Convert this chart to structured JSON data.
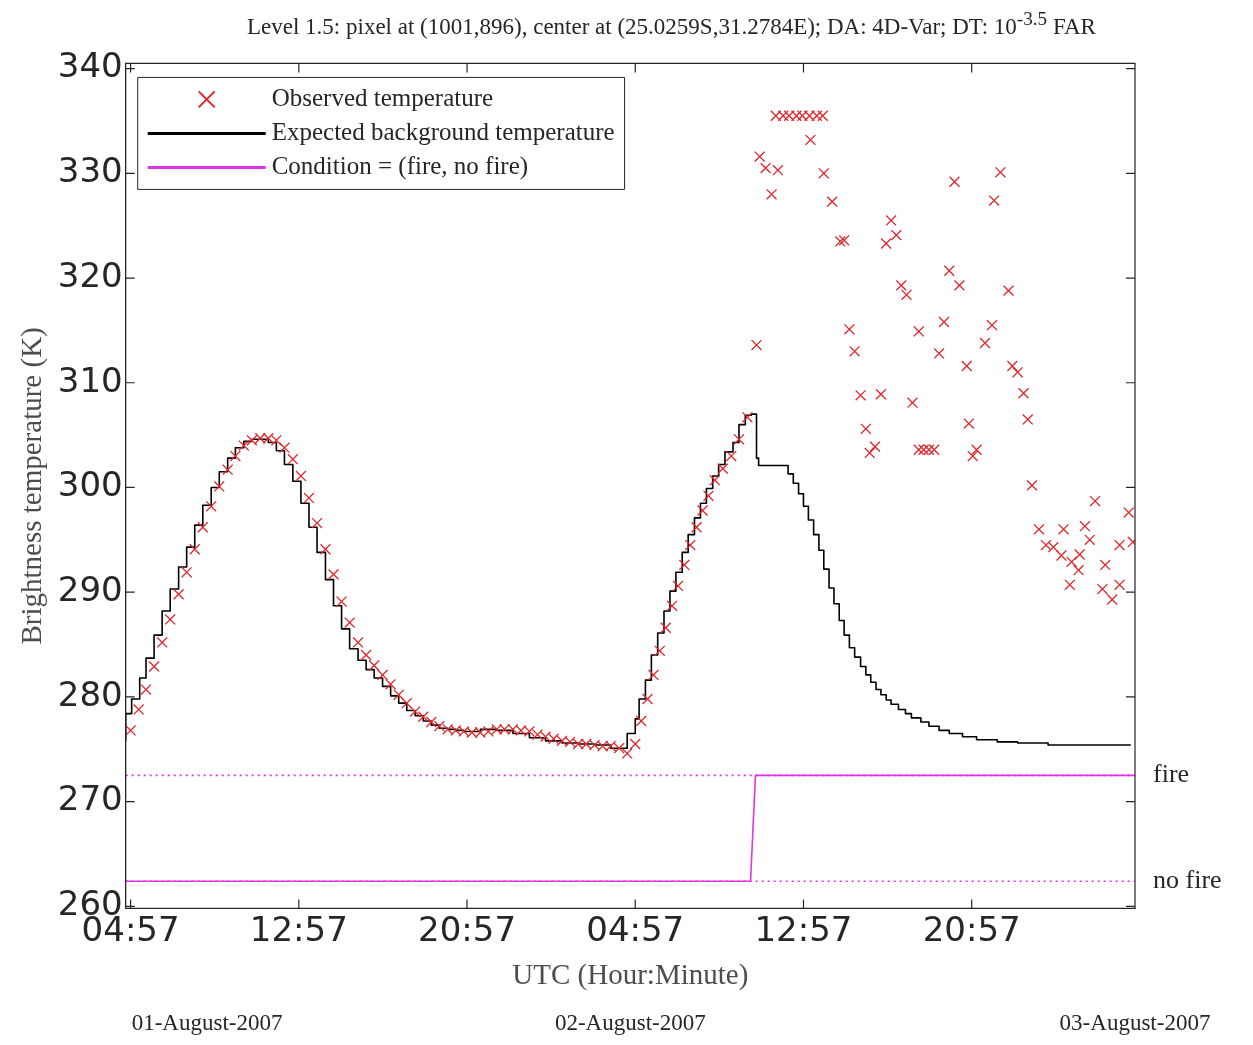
{
  "chart_data": {
    "type": "scatter",
    "title": "Level 1.5: pixel at (1001,896), center at (25.0259S,31.2784E); DA: 4D-Var; DT: 10$^{-3.5}$ FAR",
    "xlabel": "UTC (Hour:Minute)",
    "ylabel": "Brightness temperature (K)",
    "xlim": [
      "2007-08-01T04:43",
      "2007-08-03T04:43"
    ],
    "xticks": [
      {
        "value": "2007-08-01T04:57",
        "label": "04:57"
      },
      {
        "value": "2007-08-01T12:57",
        "label": "12:57"
      },
      {
        "value": "2007-08-01T20:57",
        "label": "20:57"
      },
      {
        "value": "2007-08-02T04:57",
        "label": "04:57"
      },
      {
        "value": "2007-08-02T12:57",
        "label": "12:57"
      },
      {
        "value": "2007-08-02T20:57",
        "label": "20:57"
      }
    ],
    "ylim": [
      259.8,
      340.5
    ],
    "yticks": [
      260,
      270,
      280,
      290,
      300,
      310,
      320,
      330,
      340
    ],
    "legend": "top left",
    "series": [
      {
        "name": "Observed temperature",
        "marker": "cross",
        "color": "#e0262b",
        "x": [
          "2007-08-01T04:57",
          "2007-08-01T05:20",
          "2007-08-01T05:41",
          "2007-08-01T06:04",
          "2007-08-01T06:27",
          "2007-08-01T06:50",
          "2007-08-01T07:14",
          "2007-08-01T07:37",
          "2007-08-01T08:00",
          "2007-08-01T08:23",
          "2007-08-01T08:47",
          "2007-08-01T09:10",
          "2007-08-01T09:34",
          "2007-08-01T09:56",
          "2007-08-01T10:20",
          "2007-08-01T10:43",
          "2007-08-01T11:07",
          "2007-08-01T11:30",
          "2007-08-01T11:53",
          "2007-08-01T12:16",
          "2007-08-01T12:40",
          "2007-08-01T13:03",
          "2007-08-01T13:26",
          "2007-08-01T13:49",
          "2007-08-01T14:13",
          "2007-08-01T14:36",
          "2007-08-01T14:59",
          "2007-08-01T15:22",
          "2007-08-01T15:46",
          "2007-08-01T16:09",
          "2007-08-01T16:32",
          "2007-08-01T16:56",
          "2007-08-01T17:19",
          "2007-08-01T17:42",
          "2007-08-01T18:05",
          "2007-08-01T18:29",
          "2007-08-01T18:52",
          "2007-08-01T19:15",
          "2007-08-01T19:38",
          "2007-08-01T20:02",
          "2007-08-01T20:25",
          "2007-08-01T20:48",
          "2007-08-01T21:11",
          "2007-08-01T21:35",
          "2007-08-01T21:58",
          "2007-08-01T22:22",
          "2007-08-01T22:44",
          "2007-08-01T23:08",
          "2007-08-01T23:31",
          "2007-08-01T23:55",
          "2007-08-02T00:18",
          "2007-08-02T00:41",
          "2007-08-02T01:04",
          "2007-08-02T01:28",
          "2007-08-02T01:51",
          "2007-08-02T02:14",
          "2007-08-02T02:37",
          "2007-08-02T03:01",
          "2007-08-02T03:24",
          "2007-08-02T03:47",
          "2007-08-02T04:11",
          "2007-08-02T04:34",
          "2007-08-02T04:57",
          "2007-08-02T05:14",
          "2007-08-02T05:32",
          "2007-08-02T05:49",
          "2007-08-02T06:07",
          "2007-08-02T06:24",
          "2007-08-02T06:42",
          "2007-08-02T06:59",
          "2007-08-02T07:17",
          "2007-08-02T07:34",
          "2007-08-02T07:52",
          "2007-08-02T08:09",
          "2007-08-02T08:26",
          "2007-08-02T08:44",
          "2007-08-02T09:07",
          "2007-08-02T09:31",
          "2007-08-02T09:53",
          "2007-08-02T10:17",
          "2007-08-02T10:43",
          "2007-08-02T10:52",
          "2007-08-02T11:09",
          "2007-08-02T11:44",
          "2007-08-02T11:26",
          "2007-08-02T11:38",
          "2007-08-02T11:59",
          "2007-08-02T12:16",
          "2007-08-02T12:37",
          "2007-08-02T12:54",
          "2007-08-02T13:14",
          "2007-08-02T13:35",
          "2007-08-02T13:52",
          "2007-08-02T13:17",
          "2007-08-02T13:55",
          "2007-08-02T14:19",
          "2007-08-02T14:42",
          "2007-08-02T14:53",
          "2007-08-02T17:07",
          "2007-08-02T17:22",
          "2007-08-02T16:53",
          "2007-08-02T20:08",
          "2007-08-02T22:19",
          "2007-08-02T22:01",
          "2007-08-02T19:53",
          "2007-08-02T20:22",
          "2007-08-02T22:42",
          "2007-08-02T17:36",
          "2007-08-02T17:51",
          "2007-08-02T19:38",
          "2007-08-02T21:55",
          "2007-08-02T15:08",
          "2007-08-02T18:26",
          "2007-08-02T15:23",
          "2007-08-02T21:35",
          "2007-08-02T19:24",
          "2007-08-02T20:43",
          "2007-08-02T22:53",
          "2007-08-02T23:08",
          "2007-08-02T15:40",
          "2007-08-02T16:38",
          "2007-08-02T18:08",
          "2007-08-02T23:25",
          "2007-08-02T23:37",
          "2007-08-02T20:49",
          "2007-08-02T15:55",
          "2007-08-02T16:21",
          "2007-08-02T16:06",
          "2007-08-02T18:26",
          "2007-08-02T18:40",
          "2007-08-02T18:55",
          "2007-08-02T19:10",
          "2007-08-02T21:11",
          "2007-08-02T21:00",
          "2007-08-02T23:49",
          "2007-08-03T02:49",
          "2007-08-03T04:25",
          "2007-08-03T00:09",
          "2007-08-03T01:19",
          "2007-08-03T02:20",
          "2007-08-03T02:34",
          "2007-08-03T04:37",
          "2007-08-03T03:59",
          "2007-08-03T00:29",
          "2007-08-03T00:50",
          "2007-08-03T01:13",
          "2007-08-03T02:05",
          "2007-08-03T01:42",
          "2007-08-03T03:18",
          "2007-08-03T02:02",
          "2007-08-03T01:37",
          "2007-08-03T03:10",
          "2007-08-03T03:59",
          "2007-08-03T03:38"
        ],
        "values": [
          276.8,
          278.8,
          280.7,
          282.9,
          285.2,
          287.4,
          289.8,
          291.9,
          294.1,
          296.2,
          298.2,
          300.1,
          301.7,
          303.0,
          304.0,
          304.5,
          304.7,
          304.7,
          304.5,
          303.8,
          302.7,
          301.1,
          299.0,
          296.6,
          294.1,
          291.7,
          289.1,
          287.1,
          285.2,
          284.0,
          283.0,
          282.1,
          281.2,
          280.2,
          279.4,
          278.6,
          278.1,
          277.6,
          277.2,
          276.9,
          276.8,
          276.7,
          276.6,
          276.6,
          276.7,
          276.9,
          276.9,
          276.9,
          276.8,
          276.7,
          276.4,
          276.2,
          276.0,
          275.8,
          275.7,
          275.5,
          275.5,
          275.4,
          275.3,
          275.3,
          275.1,
          274.6,
          275.5,
          277.7,
          279.8,
          282.1,
          284.4,
          286.6,
          288.7,
          290.6,
          292.6,
          294.5,
          296.2,
          297.8,
          299.2,
          300.7,
          301.8,
          303.0,
          304.6,
          306.7,
          313.6,
          331.6,
          330.5,
          330.3,
          328.0,
          335.5,
          335.5,
          335.5,
          335.5,
          335.5,
          335.5,
          335.5,
          335.5,
          333.2,
          330.0,
          327.3,
          323.5,
          323.6,
          325.5,
          324.1,
          323.3,
          329.2,
          330.1,
          327.4,
          320.7,
          319.3,
          318.8,
          319.3,
          318.4,
          315.8,
          315.5,
          315.1,
          314.9,
          313.0,
          313.8,
          312.8,
          311.6,
          311.6,
          311.0,
          308.8,
          308.9,
          308.1,
          309.0,
          306.5,
          306.1,
          305.6,
          303.9,
          303.3,
          303.6,
          303.6,
          303.6,
          303.6,
          303.6,
          303.0,
          300.2,
          298.7,
          297.6,
          296.0,
          296.0,
          296.3,
          295.0,
          294.8,
          294.5,
          294.5,
          294.3,
          293.5,
          293.6,
          292.9,
          292.6,
          292.1,
          290.7,
          290.3,
          290.7,
          289.3
        ]
      },
      {
        "name": "Expected background temperature",
        "type": "step",
        "color": "#000000",
        "x": [
          "2007-08-01T04:43",
          "2007-08-01T05:00",
          "2007-08-01T05:23",
          "2007-08-01T05:41",
          "2007-08-01T06:04",
          "2007-08-01T06:27",
          "2007-08-01T06:50",
          "2007-08-01T07:14",
          "2007-08-01T07:37",
          "2007-08-01T08:00",
          "2007-08-01T08:23",
          "2007-08-01T08:47",
          "2007-08-01T09:10",
          "2007-08-01T09:34",
          "2007-08-01T09:56",
          "2007-08-01T10:20",
          "2007-08-01T10:43",
          "2007-08-01T11:07",
          "2007-08-01T11:30",
          "2007-08-01T11:53",
          "2007-08-01T12:16",
          "2007-08-01T12:40",
          "2007-08-01T13:03",
          "2007-08-01T13:26",
          "2007-08-01T13:49",
          "2007-08-01T14:13",
          "2007-08-01T14:36",
          "2007-08-01T14:59",
          "2007-08-01T15:22",
          "2007-08-01T15:46",
          "2007-08-01T16:09",
          "2007-08-01T16:32",
          "2007-08-01T16:56",
          "2007-08-01T17:19",
          "2007-08-01T17:42",
          "2007-08-01T18:05",
          "2007-08-01T18:29",
          "2007-08-01T18:52",
          "2007-08-01T19:15",
          "2007-08-01T19:38",
          "2007-08-01T20:02",
          "2007-08-01T20:25",
          "2007-08-01T20:48",
          "2007-08-01T21:11",
          "2007-08-01T21:35",
          "2007-08-01T22:22",
          "2007-08-01T23:08",
          "2007-08-01T23:55",
          "2007-08-02T00:41",
          "2007-08-02T01:28",
          "2007-08-02T02:14",
          "2007-08-02T03:01",
          "2007-08-02T03:47",
          "2007-08-02T04:34",
          "2007-08-02T04:57",
          "2007-08-02T05:08",
          "2007-08-02T05:26",
          "2007-08-02T05:43",
          "2007-08-02T06:01",
          "2007-08-02T06:19",
          "2007-08-02T06:36",
          "2007-08-02T06:53",
          "2007-08-02T07:11",
          "2007-08-02T07:28",
          "2007-08-02T07:46",
          "2007-08-02T08:03",
          "2007-08-02T08:20",
          "2007-08-02T08:38",
          "2007-08-02T08:55",
          "2007-08-02T09:13",
          "2007-08-02T09:36",
          "2007-08-02T09:53",
          "2007-08-02T10:11",
          "2007-08-02T10:28",
          "2007-08-02T10:43",
          "2007-08-02T10:49",
          "2007-08-02T12:13",
          "2007-08-02T12:28",
          "2007-08-02T12:43",
          "2007-08-02T12:57",
          "2007-08-02T13:11",
          "2007-08-02T13:26",
          "2007-08-02T13:41",
          "2007-08-02T13:55",
          "2007-08-02T14:10",
          "2007-08-02T14:24",
          "2007-08-02T14:39",
          "2007-08-02T14:53",
          "2007-08-02T15:08",
          "2007-08-02T15:23",
          "2007-08-02T15:40",
          "2007-08-02T15:55",
          "2007-08-02T16:09",
          "2007-08-02T16:24",
          "2007-08-02T16:38",
          "2007-08-02T16:53",
          "2007-08-02T17:07",
          "2007-08-02T17:28",
          "2007-08-02T17:48",
          "2007-08-02T18:05",
          "2007-08-02T18:32",
          "2007-08-02T18:55",
          "2007-08-02T19:24",
          "2007-08-02T19:53",
          "2007-08-02T20:31",
          "2007-08-02T21:11",
          "2007-08-02T22:10",
          "2007-08-02T23:08",
          "2007-08-03T00:35",
          "2007-08-03T03:01",
          "2007-08-03T04:31"
        ],
        "values": [
          275.8,
          278.4,
          279.8,
          281.8,
          283.7,
          285.9,
          288.2,
          290.3,
          292.4,
          294.3,
          296.4,
          298.3,
          300.0,
          301.5,
          302.8,
          303.8,
          304.4,
          304.6,
          304.6,
          304.3,
          303.5,
          302.2,
          300.6,
          298.5,
          296.2,
          293.8,
          291.2,
          288.7,
          286.5,
          284.6,
          283.5,
          282.6,
          281.8,
          281.0,
          280.1,
          279.4,
          278.7,
          278.2,
          277.7,
          277.3,
          277.0,
          276.9,
          276.8,
          276.7,
          276.7,
          276.9,
          276.8,
          276.5,
          276.1,
          275.8,
          275.6,
          275.5,
          275.4,
          275.1,
          276.5,
          277.9,
          279.8,
          281.6,
          284.0,
          286.1,
          288.2,
          290.1,
          291.9,
          293.8,
          295.5,
          297.1,
          298.5,
          299.9,
          301.1,
          302.2,
          303.4,
          304.3,
          306.0,
          306.9,
          307.0,
          302.8,
          302.1,
          301.3,
          300.4,
          299.4,
          298.2,
          296.9,
          295.5,
          294.0,
          292.2,
          290.4,
          288.9,
          287.3,
          285.9,
          284.7,
          283.8,
          282.9,
          282.1,
          281.4,
          280.7,
          280.2,
          279.7,
          279.3,
          278.8,
          278.4,
          278.0,
          277.6,
          277.2,
          276.8,
          276.5,
          276.2,
          275.9,
          275.7,
          275.6,
          275.4,
          275.4
        ]
      },
      {
        "name": "Condition = (fire, no fire)",
        "type": "line",
        "color": "#e033e8",
        "x": [
          "2007-08-01T04:43",
          "2007-08-02T10:26",
          "2007-08-02T10:40",
          "2007-08-03T04:43"
        ],
        "values": [
          262.4,
          262.4,
          272.5,
          272.5
        ]
      }
    ],
    "ref_lines": [
      {
        "axis": "y",
        "value": 272.5,
        "label": "fire",
        "color": "#e033e8",
        "line_style": "dotted"
      },
      {
        "axis": "y",
        "value": 262.4,
        "label": "no fire",
        "color": "#e033e8",
        "line_style": "dotted"
      }
    ],
    "annotations": [
      "01-August-2007",
      "02-August-2007",
      "03-August-2007"
    ]
  }
}
